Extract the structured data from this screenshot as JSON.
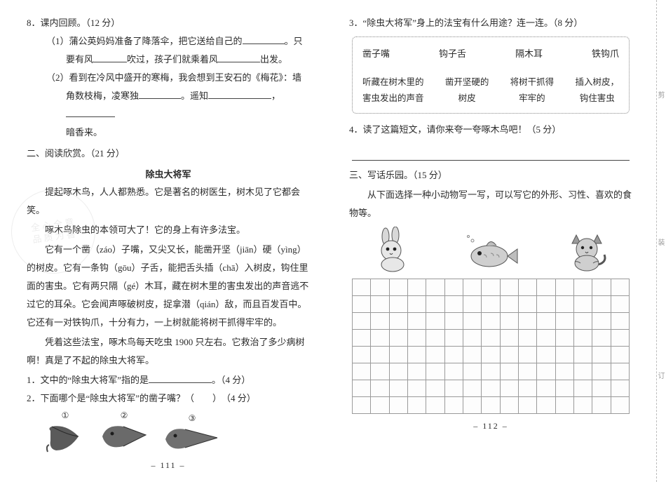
{
  "left": {
    "q8": {
      "head": "8．课内回顾。（12 分）",
      "item1_a": "（1）蒲公英妈妈准备了降落伞，把它送给自己的",
      "item1_b": "。只",
      "item1_c": "要有风",
      "item1_d": "吹过，孩子们就乘着风",
      "item1_e": "出发。",
      "item2_a": "（2）看到在冷风中盛开的寒梅，我会想到王安石的《梅花》：墙",
      "item2_b": "角数枝梅，凌寒独",
      "item2_c": "。遥知",
      "item2_d": "，",
      "item2_e": "暗香来。"
    },
    "sec2": {
      "head": "二、阅读欣赏。（21 分）",
      "title": "除虫大将军",
      "p1": "提起啄木鸟，人人都熟悉。它是著名的树医生，树木见了它都会笑。",
      "p2": "啄木鸟除虫的本领可大了！它的身上有许多法宝。",
      "p3": "它有一个凿（záo）子嘴，又尖又长，能凿开坚（jiān）硬（yìng）的树皮。它有一条钩（gōu）子舌，能把舌头插（chā）入树皮，钩住里面的害虫。它有两只隔（gé）木耳，藏在树木里的害虫发出的声音逃不过它的耳朵。它会闻声啄破树皮，捉拿潜（qián）敌，而且百发百中。它还有一对铁钩爪，十分有力，一上树就能将树干抓得牢牢的。",
      "p4": "凭着这些法宝，啄木鸟每天吃虫 1900 只左右。它救治了多少病树啊！真是了不起的除虫大将军。",
      "q1_a": "1．文中的“除虫大将军”指的是",
      "q1_b": "。（4 分）",
      "q2": "2．下面哪个是“除虫大将军”的凿子嘴？（　　）　（4 分）",
      "opts": {
        "a": "①",
        "b": "②",
        "c": "③"
      }
    },
    "pagenum": "– 111 –"
  },
  "right": {
    "q3": {
      "head": "3．“除虫大将军”身上的法宝有什么用途？连一连。（8 分）",
      "top": [
        "凿子嘴",
        "钩子舌",
        "隔木耳",
        "铁钩爪"
      ],
      "bottom": [
        "听藏在树木里的\n害虫发出的声音",
        "凿开坚硬的\n树皮",
        "将树干抓得\n牢牢的",
        "插入树皮，\n钩住害虫"
      ]
    },
    "q4": {
      "head": "4．读了这篇短文，请你来夸一夸啄木鸟吧！（5 分）"
    },
    "sec3": {
      "head": "三、写话乐园。（15 分）",
      "intro": "从下面选择一种小动物写一写，可以写它的外形、习性、喜欢的食物等。"
    },
    "grid": {
      "rows": 8,
      "cols": 15,
      "cell_border": "#9a9a9a"
    },
    "cut": {
      "a": "剪",
      "b": "装",
      "c": "订"
    },
    "pagenum": "– 112 –"
  },
  "colors": {
    "text": "#2b2b2b",
    "line": "#444444",
    "box": "#888888"
  }
}
